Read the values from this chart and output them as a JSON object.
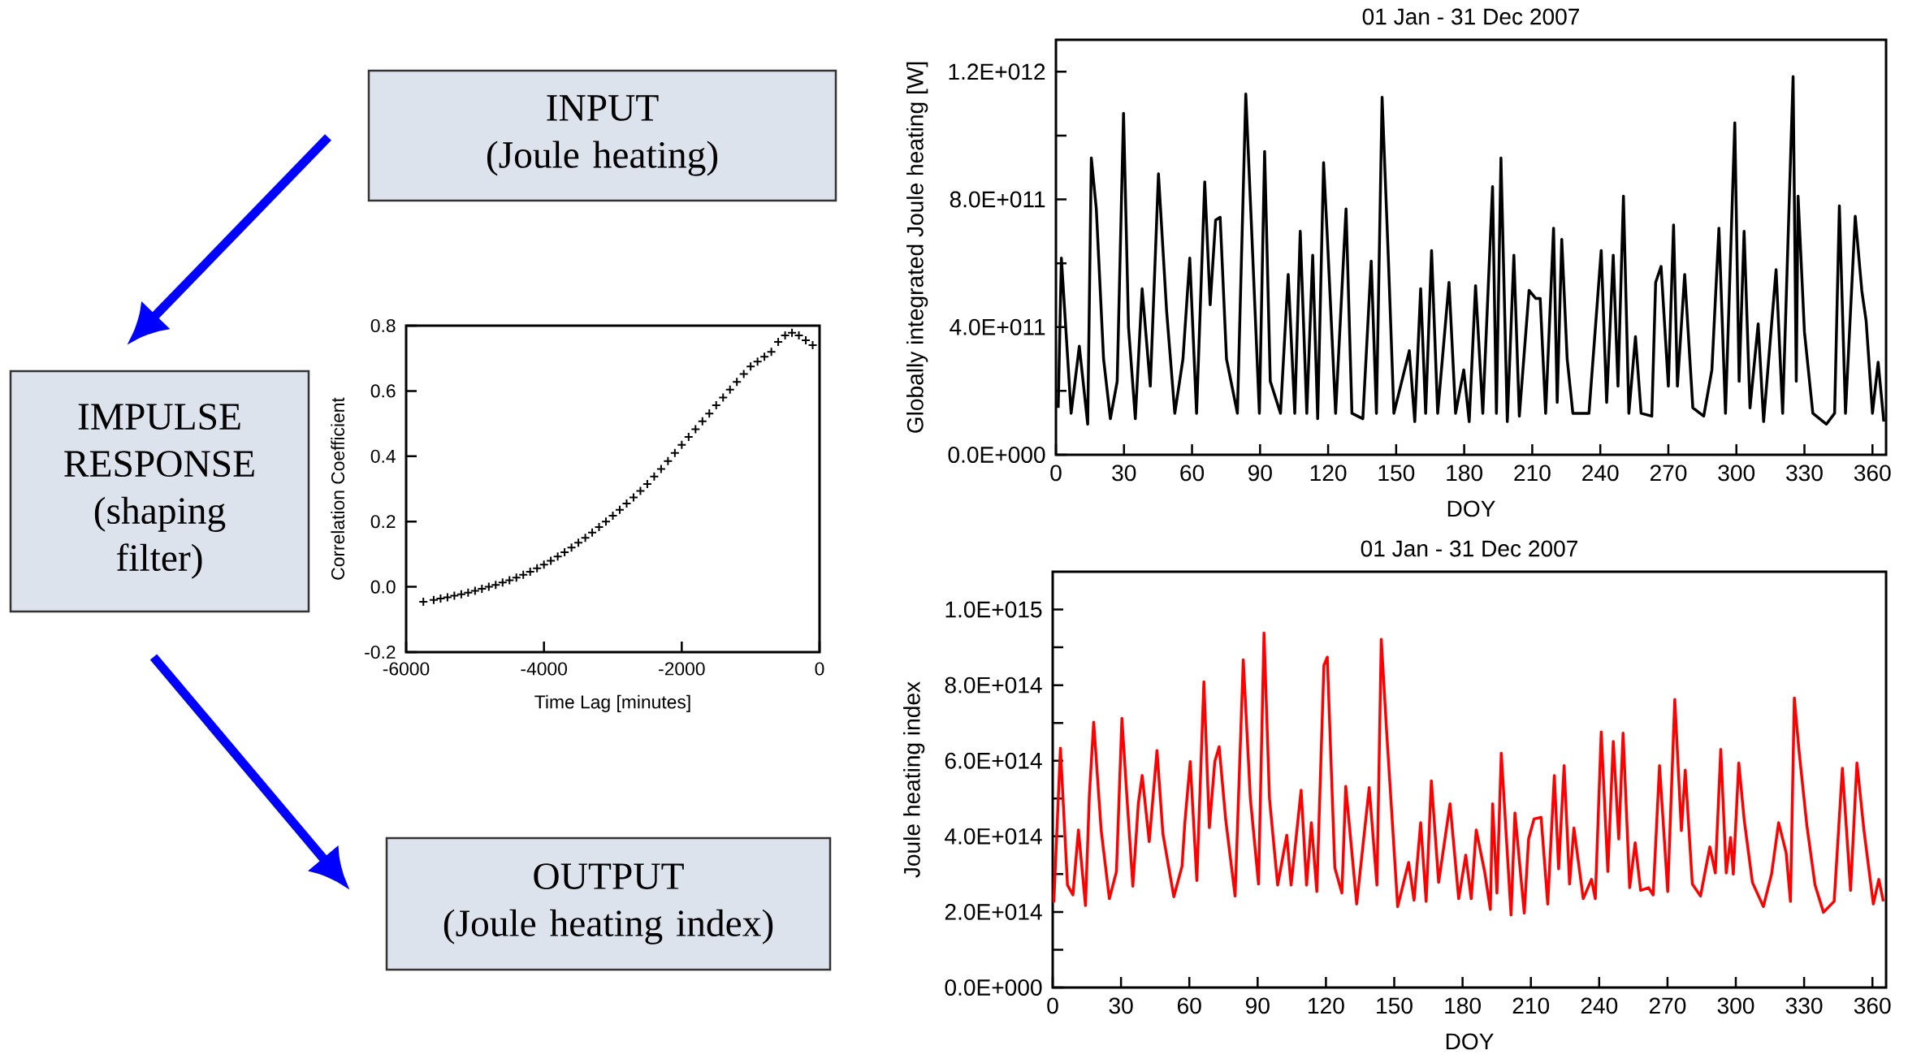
{
  "chart_data": [
    {
      "type": "other",
      "annotations": [
        "INPUT",
        "(Joule heating)",
        "IMPULSE RESPONSE",
        "(shaping filter)",
        "OUTPUT",
        "(Joule heating index)"
      ]
    },
    {
      "type": "scatter",
      "xlabel": "Time Lag [minutes]",
      "ylabel": "Correlation Coefficient",
      "color": "#000000",
      "marker": "cross",
      "xlim": [
        -6000,
        0
      ],
      "ylim": [
        -0.2,
        0.8
      ],
      "xticks": [
        -6000,
        -4000,
        -2000,
        0
      ],
      "yticks": [
        -0.2,
        {
          "value": 0,
          "label": "0.0"
        },
        0.2,
        0.4,
        0.6,
        0.8
      ],
      "x": [
        -5750,
        -5600,
        -5500,
        -5400,
        -5300,
        -5200,
        -5100,
        -5000,
        -4900,
        -4800,
        -4700,
        -4600,
        -4500,
        -4400,
        -4300,
        -4200,
        -4100,
        -4000,
        -3900,
        -3800,
        -3700,
        -3600,
        -3500,
        -3400,
        -3300,
        -3200,
        -3100,
        -3000,
        -2900,
        -2800,
        -2700,
        -2600,
        -2500,
        -2400,
        -2300,
        -2200,
        -2100,
        -2000,
        -1900,
        -1800,
        -1700,
        -1600,
        -1500,
        -1400,
        -1300,
        -1200,
        -1100,
        -1000,
        -900,
        -800,
        -700,
        -600,
        -500,
        -400,
        -300,
        -200,
        -100
      ],
      "values": [
        -0.046,
        -0.04,
        -0.036,
        -0.032,
        -0.027,
        -0.023,
        -0.018,
        -0.012,
        -0.006,
        0.0,
        0.006,
        0.013,
        0.02,
        0.028,
        0.037,
        0.046,
        0.057,
        0.068,
        0.08,
        0.093,
        0.106,
        0.12,
        0.135,
        0.15,
        0.166,
        0.183,
        0.2,
        0.218,
        0.236,
        0.255,
        0.274,
        0.294,
        0.315,
        0.338,
        0.361,
        0.385,
        0.41,
        0.435,
        0.459,
        0.483,
        0.507,
        0.531,
        0.556,
        0.58,
        0.604,
        0.628,
        0.652,
        0.675,
        0.69,
        0.705,
        0.72,
        0.75,
        0.77,
        0.778,
        0.77,
        0.755,
        0.74
      ]
    },
    {
      "type": "line",
      "title": "01 Jan - 31 Dec 2007",
      "xlabel": "DOY",
      "ylabel": "Globally integrated Joule heating [W]",
      "color": "#000000",
      "xlim": [
        0,
        366
      ],
      "ylim": [
        0,
        1300000000000.0
      ],
      "xticks": [
        0,
        30,
        60,
        90,
        120,
        150,
        180,
        210,
        240,
        270,
        300,
        330,
        360
      ],
      "yticks": [
        {
          "value": 0,
          "label": "0.0E+000"
        },
        {
          "value": 400000000000.0,
          "label": "4.0E+011"
        },
        {
          "value": 800000000000.0,
          "label": "8.0E+011"
        },
        {
          "value": 1200000000000.0,
          "label": "1.2E+012"
        }
      ],
      "x": [
        1,
        2.4,
        6.7,
        10.3,
        14,
        15.6,
        17.8,
        21,
        24,
        27,
        29.8,
        32,
        35,
        38,
        41.6,
        45.2,
        48.8,
        52.4,
        56,
        59,
        62,
        65.6,
        68,
        70.4,
        72.4,
        75.2,
        80,
        83.7,
        86,
        89.7,
        92,
        94.5,
        99,
        102.4,
        105.3,
        107.7,
        110.6,
        113.2,
        115.4,
        118,
        119.7,
        123.3,
        127.9,
        130.5,
        135.3,
        139,
        141.3,
        143.8,
        146.6,
        149,
        155.8,
        158.2,
        160.8,
        163,
        165.6,
        168.3,
        173.3,
        176.2,
        179.8,
        182.2,
        185,
        188.2,
        192.5,
        194.2,
        196.2,
        199,
        201.9,
        204.3,
        208.6,
        211.5,
        213.5,
        215.9,
        219.4,
        221,
        223,
        225.4,
        227.9,
        235,
        240.4,
        242.8,
        245.7,
        247.8,
        250.2,
        252.6,
        255.5,
        258,
        262.7,
        264.4,
        266.8,
        270,
        272.3,
        274,
        277.2,
        280.8,
        285.6,
        289.2,
        292.3,
        295.2,
        299.3,
        301.2,
        303.4,
        306,
        309.6,
        312,
        317.5,
        320.4,
        325,
        326.4,
        327.2,
        330,
        333.7,
        339.7,
        343.3,
        345.4,
        348.1,
        352.4,
        355.3,
        357.2,
        360,
        362.5,
        365
      ],
      "values": [
        147000000000.0,
        616000000000.0,
        130000000000.0,
        340000000000.0,
        96000000000.0,
        930000000000.0,
        770000000000.0,
        300000000000.0,
        113000000000.0,
        230000000000.0,
        1070000000000.0,
        400000000000.0,
        113000000000.0,
        520000000000.0,
        215000000000.0,
        880000000000.0,
        450000000000.0,
        130000000000.0,
        300000000000.0,
        616000000000.0,
        130000000000.0,
        855000000000.0,
        470000000000.0,
        735000000000.0,
        744000000000.0,
        300000000000.0,
        130000000000.0,
        1130000000000.0,
        750000000000.0,
        130000000000.0,
        950000000000.0,
        230000000000.0,
        130000000000.0,
        565000000000.0,
        130000000000.0,
        700000000000.0,
        130000000000.0,
        625000000000.0,
        113000000000.0,
        915000000000.0,
        675000000000.0,
        130000000000.0,
        770000000000.0,
        130000000000.0,
        113000000000.0,
        607000000000.0,
        130000000000.0,
        1120000000000.0,
        607000000000.0,
        130000000000.0,
        326000000000.0,
        104000000000.0,
        520000000000.0,
        130000000000.0,
        640000000000.0,
        130000000000.0,
        540000000000.0,
        130000000000.0,
        266000000000.0,
        104000000000.0,
        530000000000.0,
        130000000000.0,
        840000000000.0,
        130000000000.0,
        930000000000.0,
        104000000000.0,
        625000000000.0,
        121000000000.0,
        515000000000.0,
        490000000000.0,
        490000000000.0,
        130000000000.0,
        710000000000.0,
        164000000000.0,
        675000000000.0,
        300000000000.0,
        130000000000.0,
        130000000000.0,
        640000000000.0,
        164000000000.0,
        625000000000.0,
        215000000000.0,
        810000000000.0,
        130000000000.0,
        370000000000.0,
        130000000000.0,
        121000000000.0,
        540000000000.0,
        590000000000.0,
        215000000000.0,
        720000000000.0,
        215000000000.0,
        565000000000.0,
        147000000000.0,
        121000000000.0,
        266000000000.0,
        710000000000.0,
        130000000000.0,
        1040000000000.0,
        230000000000.0,
        700000000000.0,
        147000000000.0,
        410000000000.0,
        104000000000.0,
        580000000000.0,
        130000000000.0,
        1185000000000.0,
        230000000000.0,
        810000000000.0,
        385000000000.0,
        130000000000.0,
        96000000000.0,
        130000000000.0,
        780000000000.0,
        130000000000.0,
        747000000000.0,
        514000000000.0,
        420000000000.0,
        130000000000.0,
        290000000000.0,
        104000000000.0
      ]
    },
    {
      "type": "line",
      "title": "01 Jan - 31 Dec 2007",
      "xlabel": "DOY",
      "ylabel": "Joule heating index",
      "color": "#ff0000",
      "xlim": [
        0,
        366
      ],
      "ylim": [
        0,
        1100000000000000.0
      ],
      "xticks": [
        0,
        30,
        60,
        90,
        120,
        150,
        180,
        210,
        240,
        270,
        300,
        330,
        360
      ],
      "yticks": [
        {
          "value": 0,
          "label": "0.0E+000"
        },
        {
          "value": 200000000000000.0,
          "label": "2.0E+014"
        },
        {
          "value": 400000000000000.0,
          "label": "4.0E+014"
        },
        {
          "value": 600000000000000.0,
          "label": "6.0E+014"
        },
        {
          "value": 800000000000000.0,
          "label": "8.0E+014"
        },
        {
          "value": 1000000000000000.0,
          "label": "1.0E+015"
        }
      ],
      "x": [
        0.5,
        3.4,
        6.5,
        8.9,
        11.3,
        14.4,
        16.1,
        18,
        21.3,
        24.9,
        28,
        30.4,
        32.8,
        35.2,
        37.6,
        39.3,
        42.4,
        45.8,
        48.4,
        53.2,
        56.8,
        58,
        60.4,
        63.3,
        66.4,
        68.8,
        71.2,
        73.1,
        76,
        80.1,
        83.7,
        86.8,
        90.4,
        92.8,
        95.2,
        98.8,
        102.8,
        104.7,
        109.1,
        111.5,
        113.6,
        116,
        119.1,
        120.6,
        123.9,
        127,
        128.7,
        133.5,
        139,
        142.4,
        144.3,
        146.7,
        151.5,
        156.3,
        158.7,
        161.6,
        164,
        166.3,
        169.5,
        174.5,
        178.3,
        181.4,
        183.8,
        186,
        189.8,
        192.2,
        193.2,
        195.1,
        197,
        201.3,
        203,
        207.1,
        209,
        211.4,
        214.5,
        217.4,
        220.3,
        222.2,
        224.6,
        227,
        228.9,
        233,
        236.6,
        238.3,
        240.9,
        243.8,
        246.2,
        248.6,
        250.5,
        253.4,
        255.8,
        258.2,
        261.7,
        263.7,
        266.5,
        270.1,
        273.2,
        276.1,
        277.8,
        280.9,
        284.5,
        288.6,
        291,
        293.4,
        295.8,
        297.7,
        298.9,
        301.3,
        303.7,
        307.3,
        312.1,
        315.7,
        318.8,
        322.1,
        324,
        325.7,
        327.7,
        331.2,
        334.8,
        338.5,
        343.2,
        346.8,
        350.4,
        353.2,
        356.3,
        360.4,
        362.8,
        364.8
      ],
      "values": [
        225000000000000.0,
        633000000000000.0,
        271000000000000.0,
        245000000000000.0,
        417000000000000.0,
        217000000000000.0,
        508000000000000.0,
        702000000000000.0,
        415000000000000.0,
        235000000000000.0,
        307000000000000.0,
        712000000000000.0,
        486000000000000.0,
        268000000000000.0,
        486000000000000.0,
        561000000000000.0,
        386000000000000.0,
        627000000000000.0,
        407000000000000.0,
        240000000000000.0,
        321000000000000.0,
        433000000000000.0,
        598000000000000.0,
        283000000000000.0,
        809000000000000.0,
        423000000000000.0,
        598000000000000.0,
        637000000000000.0,
        443000000000000.0,
        242000000000000.0,
        867000000000000.0,
        501000000000000.0,
        274000000000000.0,
        938000000000000.0,
        501000000000000.0,
        271000000000000.0,
        403000000000000.0,
        271000000000000.0,
        522000000000000.0,
        271000000000000.0,
        436000000000000.0,
        254000000000000.0,
        852000000000000.0,
        874000000000000.0,
        317000000000000.0,
        250000000000000.0,
        532000000000000.0,
        221000000000000.0,
        529000000000000.0,
        271000000000000.0,
        921000000000000.0,
        673000000000000.0,
        214000000000000.0,
        331000000000000.0,
        231000000000000.0,
        436000000000000.0,
        228000000000000.0,
        547000000000000.0,
        278000000000000.0,
        486000000000000.0,
        235000000000000.0,
        350000000000000.0,
        235000000000000.0,
        417000000000000.0,
        303000000000000.0,
        207000000000000.0,
        486000000000000.0,
        250000000000000.0,
        620000000000000.0,
        192000000000000.0,
        462000000000000.0,
        197000000000000.0,
        393000000000000.0,
        446000000000000.0,
        450000000000000.0,
        221000000000000.0,
        561000000000000.0,
        314000000000000.0,
        587000000000000.0,
        274000000000000.0,
        422000000000000.0,
        235000000000000.0,
        286000000000000.0,
        235000000000000.0,
        676000000000000.0,
        307000000000000.0,
        651000000000000.0,
        393000000000000.0,
        673000000000000.0,
        264000000000000.0,
        383000000000000.0,
        257000000000000.0,
        264000000000000.0,
        245000000000000.0,
        587000000000000.0,
        254000000000000.0,
        762000000000000.0,
        415000000000000.0,
        575000000000000.0,
        274000000000000.0,
        242000000000000.0,
        372000000000000.0,
        303000000000000.0,
        630000000000000.0,
        303000000000000.0,
        397000000000000.0,
        300000000000000.0,
        594000000000000.0,
        443000000000000.0,
        278000000000000.0,
        214000000000000.0,
        300000000000000.0,
        436000000000000.0,
        357000000000000.0,
        228000000000000.0,
        766000000000000.0,
        630000000000000.0,
        429000000000000.0,
        271000000000000.0,
        199000000000000.0,
        228000000000000.0,
        580000000000000.0,
        257000000000000.0,
        594000000000000.0,
        415000000000000.0,
        221000000000000.0,
        286000000000000.0,
        228000000000000.0
      ]
    }
  ]
}
